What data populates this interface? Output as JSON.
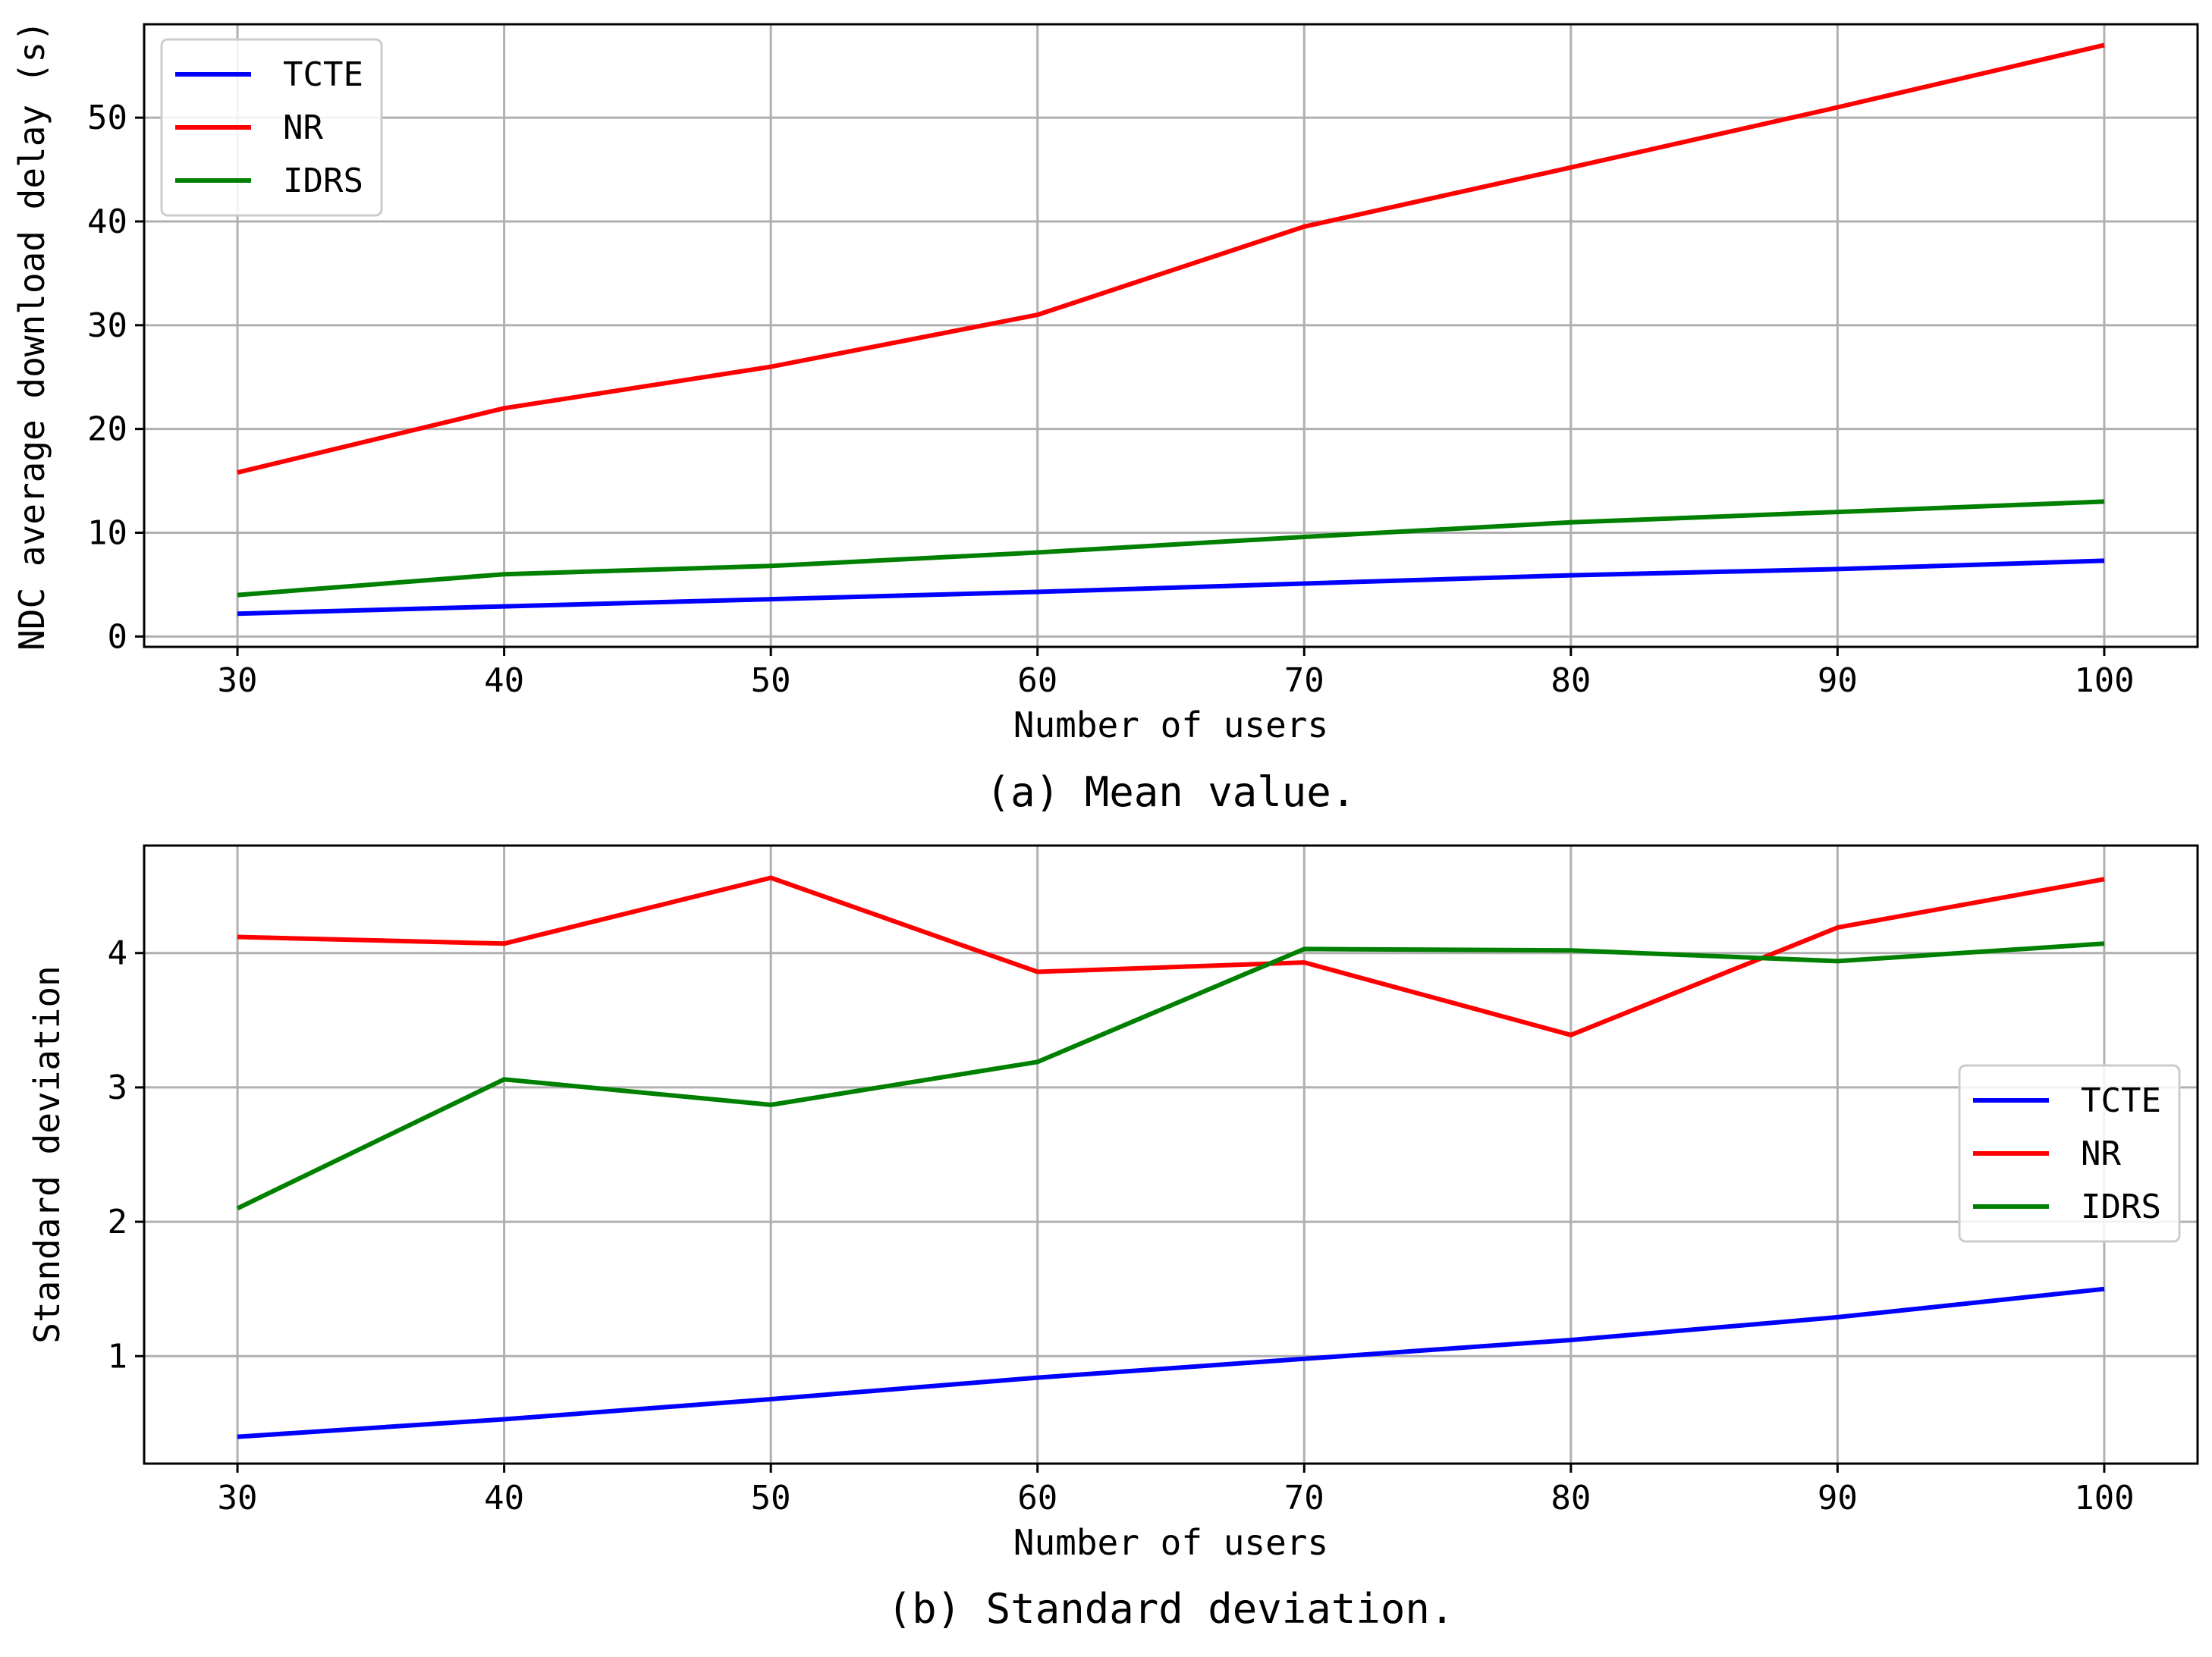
{
  "chart_data": [
    {
      "type": "line",
      "caption": "(a) Mean value.",
      "xlabel": "Number of users",
      "ylabel": "NDC average download delay (s)",
      "x": [
        30,
        40,
        50,
        60,
        70,
        80,
        90,
        100
      ],
      "xlim": [
        26.5,
        103.5
      ],
      "ylim": [
        -1,
        59
      ],
      "xticks": [
        30,
        40,
        50,
        60,
        70,
        80,
        90,
        100
      ],
      "yticks": [
        0,
        10,
        20,
        30,
        40,
        50
      ],
      "grid": true,
      "legend_position": "upper left",
      "series": [
        {
          "name": "TCTE",
          "color": "#0000ff",
          "values": [
            2.2,
            2.9,
            3.6,
            4.3,
            5.1,
            5.9,
            6.5,
            7.3
          ]
        },
        {
          "name": "NR",
          "color": "#ff0000",
          "values": [
            15.8,
            22.0,
            26.0,
            31.0,
            39.5,
            45.2,
            51.0,
            57.0
          ]
        },
        {
          "name": "IDRS",
          "color": "#008000",
          "values": [
            4.0,
            6.0,
            6.8,
            8.1,
            9.6,
            11.0,
            12.0,
            13.0
          ]
        }
      ]
    },
    {
      "type": "line",
      "caption": "(b) Standard deviation.",
      "xlabel": "Number of users",
      "ylabel": "Standard deviation",
      "x": [
        30,
        40,
        50,
        60,
        70,
        80,
        90,
        100
      ],
      "xlim": [
        26.5,
        103.5
      ],
      "ylim": [
        0.2,
        4.8
      ],
      "xticks": [
        30,
        40,
        50,
        60,
        70,
        80,
        90,
        100
      ],
      "yticks": [
        1,
        2,
        3,
        4
      ],
      "grid": true,
      "legend_position": "center right",
      "series": [
        {
          "name": "TCTE",
          "color": "#0000ff",
          "values": [
            0.4,
            0.53,
            0.68,
            0.84,
            0.98,
            1.12,
            1.29,
            1.5
          ]
        },
        {
          "name": "NR",
          "color": "#ff0000",
          "values": [
            4.12,
            4.07,
            4.56,
            3.86,
            3.93,
            3.39,
            4.19,
            4.55
          ]
        },
        {
          "name": "IDRS",
          "color": "#008000",
          "values": [
            2.1,
            3.06,
            2.87,
            3.19,
            4.03,
            4.02,
            3.94,
            4.07
          ]
        }
      ]
    }
  ]
}
